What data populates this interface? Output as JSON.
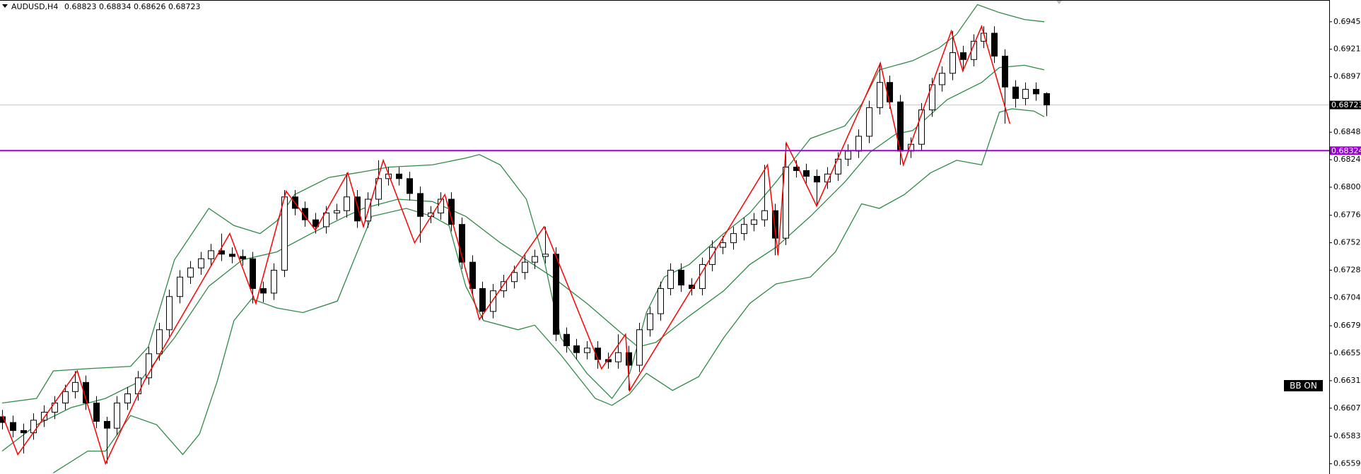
{
  "chart_data": {
    "type": "candlestick",
    "symbol": "AUDUSD,H4",
    "open": [
      0.66,
      0.6595,
      0.6588,
      0.6586,
      0.6597,
      0.6604,
      0.6612,
      0.6622,
      0.663,
      0.6612,
      0.6596,
      0.659,
      0.6612,
      0.662,
      0.6634,
      0.6655,
      0.6676,
      0.6705,
      0.6722,
      0.673,
      0.6738,
      0.6745,
      0.6742,
      0.674,
      0.6738,
      0.6712,
      0.6708,
      0.6728,
      0.6792,
      0.6782,
      0.6772,
      0.6766,
      0.6778,
      0.678,
      0.6792,
      0.6771,
      0.679,
      0.6808,
      0.6812,
      0.6808,
      0.6795,
      0.6775,
      0.6778,
      0.679,
      0.6768,
      0.6735,
      0.6712,
      0.6692,
      0.671,
      0.6718,
      0.6726,
      0.6735,
      0.674,
      0.6742,
      0.6672,
      0.6662,
      0.6656,
      0.666,
      0.665,
      0.6648,
      0.6656,
      0.6645,
      0.6676,
      0.669,
      0.6712,
      0.6728,
      0.6715,
      0.6712,
      0.6733,
      0.6748,
      0.6752,
      0.676,
      0.6768,
      0.6772,
      0.678,
      0.6756,
      0.6818,
      0.6815,
      0.681,
      0.6805,
      0.6812,
      0.6825,
      0.6832,
      0.6845,
      0.687,
      0.6892,
      0.6875,
      0.6832,
      0.6838,
      0.6868,
      0.689,
      0.69,
      0.6918,
      0.6912,
      0.6928,
      0.6935,
      0.6915,
      0.6888,
      0.6878,
      0.6886,
      0.68823
    ],
    "high": [
      0.6606,
      0.6601,
      0.6594,
      0.6603,
      0.661,
      0.6618,
      0.6628,
      0.664,
      0.6636,
      0.6618,
      0.66,
      0.6618,
      0.6626,
      0.664,
      0.6661,
      0.6682,
      0.6711,
      0.6728,
      0.6736,
      0.6744,
      0.6751,
      0.676,
      0.6748,
      0.6746,
      0.6744,
      0.6718,
      0.6734,
      0.6798,
      0.6798,
      0.6788,
      0.6778,
      0.6784,
      0.6786,
      0.6813,
      0.6798,
      0.6796,
      0.6824,
      0.6818,
      0.6818,
      0.6814,
      0.6801,
      0.6784,
      0.6796,
      0.6796,
      0.6774,
      0.6741,
      0.6718,
      0.6716,
      0.6724,
      0.6732,
      0.6741,
      0.6746,
      0.6766,
      0.6748,
      0.6678,
      0.6668,
      0.6666,
      0.6666,
      0.6656,
      0.6672,
      0.6662,
      0.6682,
      0.6696,
      0.6718,
      0.6734,
      0.6734,
      0.6721,
      0.6739,
      0.6754,
      0.6758,
      0.6766,
      0.6774,
      0.6778,
      0.682,
      0.6786,
      0.6839,
      0.6824,
      0.6821,
      0.6816,
      0.6818,
      0.6831,
      0.6838,
      0.6851,
      0.6876,
      0.6909,
      0.6898,
      0.6881,
      0.6844,
      0.6874,
      0.6896,
      0.6906,
      0.6937,
      0.6924,
      0.6934,
      0.6941,
      0.6941,
      0.6921,
      0.6894,
      0.6892,
      0.6892,
      0.68834
    ],
    "low": [
      0.6589,
      0.6582,
      0.6568,
      0.658,
      0.6591,
      0.6598,
      0.6606,
      0.6616,
      0.6606,
      0.659,
      0.6559,
      0.6584,
      0.6606,
      0.6614,
      0.6628,
      0.6649,
      0.667,
      0.6699,
      0.6716,
      0.6724,
      0.6732,
      0.6736,
      0.6734,
      0.6732,
      0.6699,
      0.67,
      0.6702,
      0.6722,
      0.6776,
      0.6766,
      0.676,
      0.676,
      0.6772,
      0.6774,
      0.6765,
      0.6765,
      0.6784,
      0.6802,
      0.6802,
      0.6789,
      0.6752,
      0.6769,
      0.6772,
      0.6762,
      0.6729,
      0.6706,
      0.6685,
      0.6686,
      0.6704,
      0.6712,
      0.672,
      0.6729,
      0.6734,
      0.6666,
      0.6656,
      0.665,
      0.665,
      0.6642,
      0.6642,
      0.6642,
      0.6623,
      0.6639,
      0.667,
      0.6684,
      0.6706,
      0.6709,
      0.6706,
      0.6706,
      0.6727,
      0.6742,
      0.6746,
      0.6754,
      0.6762,
      0.6766,
      0.6741,
      0.675,
      0.6809,
      0.6804,
      0.6784,
      0.6799,
      0.6806,
      0.6819,
      0.6826,
      0.6839,
      0.6864,
      0.6869,
      0.682,
      0.6826,
      0.6832,
      0.6862,
      0.6884,
      0.6894,
      0.6902,
      0.6906,
      0.6922,
      0.6909,
      0.6856,
      0.687,
      0.6872,
      0.6876,
      0.68626
    ],
    "close": [
      0.6595,
      0.6588,
      0.6586,
      0.6597,
      0.6604,
      0.6612,
      0.6622,
      0.663,
      0.6612,
      0.6596,
      0.659,
      0.6612,
      0.662,
      0.6634,
      0.6655,
      0.6676,
      0.6705,
      0.6722,
      0.673,
      0.6738,
      0.6745,
      0.6742,
      0.674,
      0.6738,
      0.6712,
      0.6708,
      0.6728,
      0.6792,
      0.6782,
      0.6772,
      0.6766,
      0.6778,
      0.678,
      0.6792,
      0.6771,
      0.679,
      0.6808,
      0.6812,
      0.6808,
      0.6795,
      0.6775,
      0.6778,
      0.679,
      0.6768,
      0.6735,
      0.6712,
      0.6692,
      0.671,
      0.6718,
      0.6726,
      0.6735,
      0.674,
      0.6742,
      0.6672,
      0.6662,
      0.6656,
      0.666,
      0.665,
      0.6648,
      0.6656,
      0.6645,
      0.6676,
      0.669,
      0.6712,
      0.6728,
      0.6715,
      0.6712,
      0.6733,
      0.6748,
      0.6752,
      0.676,
      0.6768,
      0.6772,
      0.678,
      0.6756,
      0.6818,
      0.6815,
      0.681,
      0.6805,
      0.6812,
      0.6825,
      0.6832,
      0.6845,
      0.687,
      0.6892,
      0.6875,
      0.6832,
      0.6838,
      0.6868,
      0.689,
      0.69,
      0.6918,
      0.6912,
      0.6928,
      0.6935,
      0.6915,
      0.6888,
      0.6878,
      0.6886,
      0.6882,
      0.68723
    ],
    "color_up": "#ffffff",
    "color_down": "#000000",
    "ylim": [
      0.655,
      0.6964
    ],
    "yticks": [
      {
        "value": 0.6945,
        "label": "0.69450"
      },
      {
        "value": 0.6921,
        "label": "0.69210"
      },
      {
        "value": 0.6897,
        "label": "0.68970"
      },
      {
        "value": 0.68485,
        "label": "0.68485"
      },
      {
        "value": 0.68245,
        "label": "0.68245"
      },
      {
        "value": 0.68005,
        "label": "0.68005"
      },
      {
        "value": 0.6776,
        "label": "0.67760"
      },
      {
        "value": 0.6752,
        "label": "0.67520"
      },
      {
        "value": 0.6728,
        "label": "0.67280"
      },
      {
        "value": 0.6704,
        "label": "0.67040"
      },
      {
        "value": 0.66795,
        "label": "0.66795"
      },
      {
        "value": 0.66555,
        "label": "0.66555"
      },
      {
        "value": 0.66315,
        "label": "0.66315"
      },
      {
        "value": 0.66075,
        "label": "0.66075"
      },
      {
        "value": 0.6583,
        "label": "0.65830"
      },
      {
        "value": 0.6559,
        "label": "0.65590"
      }
    ],
    "bands": {
      "color": "#2f8a47",
      "series": [
        {
          "x": [
            0,
            3.3,
            4.9,
            8.2,
            12.3,
            14,
            16.5,
            19.8,
            22.2,
            24.7,
            26.3,
            28,
            31.3,
            34.6,
            37,
            41.2,
            44.4,
            45.7,
            47.7,
            50.2,
            51.9,
            53.5,
            56,
            58.4,
            60.1,
            61.7,
            63.4,
            65.8,
            69.1,
            71.6,
            74.1,
            77.4,
            80.7,
            82.3,
            84,
            87.2,
            89.7,
            91.4,
            93.4,
            95.5,
            97.9,
            99.8
          ],
          "values": [
            0.6612,
            0.6616,
            0.664,
            0.6642,
            0.6644,
            0.6661,
            0.6737,
            0.6782,
            0.6767,
            0.676,
            0.6771,
            0.6794,
            0.6809,
            0.6814,
            0.6818,
            0.682,
            0.6826,
            0.6829,
            0.682,
            0.679,
            0.6737,
            0.6669,
            0.6638,
            0.6616,
            0.6638,
            0.6691,
            0.6722,
            0.6733,
            0.676,
            0.6778,
            0.6805,
            0.6843,
            0.6854,
            0.6873,
            0.6903,
            0.6911,
            0.6922,
            0.6934,
            0.696,
            0.6953,
            0.6947,
            0.6945
          ]
        },
        {
          "x": [
            0,
            3.3,
            6.6,
            9.9,
            13.2,
            16.5,
            19.8,
            23,
            26.3,
            29.6,
            32.9,
            34.6,
            37.9,
            41.2,
            44.4,
            47.7,
            50.2,
            52.7,
            56,
            59.3,
            60.9,
            62.6,
            65.8,
            69.1,
            71.6,
            74.1,
            77.4,
            80.7,
            83.1,
            85.6,
            87.2,
            90.5,
            93.8,
            95.5,
            97.9,
            99.8
          ],
          "values": [
            0.657,
            0.6593,
            0.6608,
            0.6616,
            0.6631,
            0.6669,
            0.6714,
            0.6737,
            0.6744,
            0.676,
            0.6775,
            0.6782,
            0.679,
            0.6788,
            0.6775,
            0.6752,
            0.6737,
            0.6722,
            0.6699,
            0.6673,
            0.6661,
            0.6665,
            0.6688,
            0.671,
            0.6733,
            0.6748,
            0.6775,
            0.6805,
            0.6831,
            0.6847,
            0.685,
            0.6877,
            0.6892,
            0.6905,
            0.6907,
            0.6903
          ]
        },
        {
          "x": [
            4.9,
            8.2,
            9.9,
            12.3,
            14.8,
            17.3,
            18.9,
            20.6,
            22.2,
            23.9,
            26.3,
            28.8,
            32.1,
            33.7,
            35.4,
            38.7,
            41.2,
            42.8,
            44.4,
            46.1,
            49.4,
            51,
            53.5,
            56.8,
            58.4,
            60.1,
            61.7,
            64.2,
            66.7,
            69.1,
            71.6,
            74.1,
            77.4,
            79.8,
            82.3,
            84,
            86.4,
            88.9,
            91.4,
            93.8,
            95.5,
            96.7,
            98.8,
            99.8
          ],
          "values": [
            0.6551,
            0.657,
            0.657,
            0.6601,
            0.6593,
            0.6567,
            0.6585,
            0.6631,
            0.6684,
            0.6703,
            0.6695,
            0.6691,
            0.6701,
            0.6737,
            0.6775,
            0.6782,
            0.6775,
            0.6767,
            0.6714,
            0.6684,
            0.6676,
            0.668,
            0.6654,
            0.6616,
            0.661,
            0.662,
            0.6638,
            0.6623,
            0.6635,
            0.6669,
            0.6699,
            0.6716,
            0.6722,
            0.6744,
            0.6786,
            0.6782,
            0.6794,
            0.6813,
            0.6824,
            0.682,
            0.6866,
            0.6869,
            0.6867,
            0.6862
          ]
        }
      ]
    },
    "zigzag": {
      "color": "#ff0000",
      "x": [
        0,
        1.5,
        7.2,
        9.9,
        13.6,
        21.8,
        24.3,
        27.2,
        30,
        33.1,
        34.6,
        36.5,
        39.5,
        42.4,
        45.7,
        51.9,
        57.4,
        59.7,
        60.1,
        73.3,
        74.3,
        75.1,
        78,
        84.1,
        86.3,
        90.9,
        92,
        93.8,
        96.5
      ],
      "values": [
        0.6602,
        0.6567,
        0.664,
        0.6559,
        0.6631,
        0.676,
        0.6699,
        0.6797,
        0.6763,
        0.6813,
        0.6766,
        0.6824,
        0.6752,
        0.6794,
        0.6685,
        0.6766,
        0.6642,
        0.6672,
        0.6623,
        0.682,
        0.6741,
        0.6839,
        0.6784,
        0.6909,
        0.682,
        0.6937,
        0.6902,
        0.6941,
        0.6856
      ]
    },
    "levels": [
      {
        "value": 0.68324,
        "color": "#9b00d9"
      }
    ],
    "current_line_color": "#c8c8c8",
    "button": "BB ON"
  }
}
